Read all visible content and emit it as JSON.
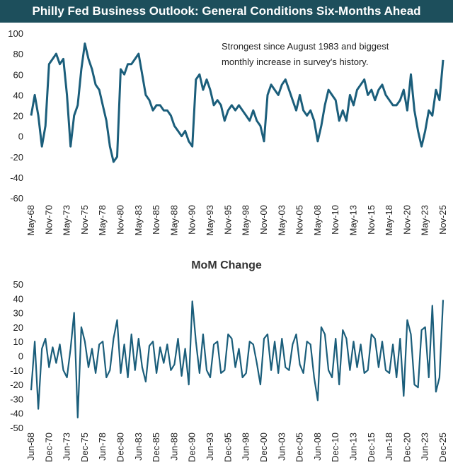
{
  "chart_data": [
    {
      "type": "line",
      "title": "Philly Fed Business Outlook: General Conditions Six-Months Ahead",
      "annotations": [
        "Strongest since August 1983 and biggest",
        "monthly increase in survey's history."
      ],
      "color": "#1b5e7b",
      "categories": [
        "May-68",
        null,
        null,
        null,
        null,
        "Nov-70",
        null,
        null,
        null,
        null,
        "May-73",
        null,
        null,
        null,
        null,
        "Nov-75",
        null,
        null,
        null,
        null,
        "May-78",
        null,
        null,
        null,
        null,
        "Nov-80",
        null,
        null,
        null,
        null,
        "May-83",
        null,
        null,
        null,
        null,
        "Nov-85",
        null,
        null,
        null,
        null,
        "May-88",
        null,
        null,
        null,
        null,
        "Nov-90",
        null,
        null,
        null,
        null,
        "May-93",
        null,
        null,
        null,
        null,
        "Nov-95",
        null,
        null,
        null,
        null,
        "May-98",
        null,
        null,
        null,
        null,
        "Nov-00",
        null,
        null,
        null,
        null,
        "May-03",
        null,
        null,
        null,
        null,
        "Nov-05",
        null,
        null,
        null,
        null,
        "May-08",
        null,
        null,
        null,
        null,
        "Nov-10",
        null,
        null,
        null,
        null,
        "May-13",
        null,
        null,
        null,
        null,
        "Nov-15",
        null,
        null,
        null,
        null,
        "May-18",
        null,
        null,
        null,
        null,
        "Nov-20",
        null,
        null,
        null,
        null,
        "May-23",
        null,
        null,
        null,
        null,
        "Nov-25"
      ],
      "values": [
        20,
        40,
        20,
        -10,
        10,
        70,
        75,
        80,
        70,
        75,
        40,
        -10,
        20,
        30,
        65,
        90,
        75,
        65,
        50,
        45,
        30,
        15,
        -10,
        -25,
        -20,
        65,
        60,
        70,
        70,
        75,
        80,
        60,
        40,
        35,
        25,
        30,
        30,
        25,
        25,
        20,
        10,
        5,
        0,
        5,
        -5,
        -10,
        55,
        60,
        45,
        55,
        45,
        30,
        35,
        30,
        15,
        25,
        30,
        25,
        30,
        25,
        20,
        15,
        25,
        15,
        10,
        -5,
        40,
        50,
        45,
        40,
        50,
        55,
        45,
        35,
        25,
        40,
        25,
        20,
        25,
        15,
        -5,
        10,
        30,
        45,
        40,
        35,
        15,
        25,
        15,
        40,
        30,
        45,
        50,
        55,
        40,
        45,
        35,
        45,
        50,
        40,
        35,
        30,
        30,
        35,
        45,
        25,
        60,
        25,
        5,
        -10,
        5,
        25,
        20,
        45,
        35,
        74
      ],
      "ylim": [
        -60,
        100
      ],
      "yticks": [
        -60,
        -40,
        -20,
        0,
        20,
        40,
        60,
        80,
        100
      ]
    },
    {
      "type": "line",
      "title": "MoM Change",
      "color": "#1b5e7b",
      "categories": [
        "Jun-68",
        null,
        null,
        null,
        null,
        "Dec-70",
        null,
        null,
        null,
        null,
        "Jun-73",
        null,
        null,
        null,
        null,
        "Dec-75",
        null,
        null,
        null,
        null,
        "Jun-78",
        null,
        null,
        null,
        null,
        "Dec-80",
        null,
        null,
        null,
        null,
        "Jun-83",
        null,
        null,
        null,
        null,
        "Dec-85",
        null,
        null,
        null,
        null,
        "Jun-88",
        null,
        null,
        null,
        null,
        "Dec-90",
        null,
        null,
        null,
        null,
        "Jun-93",
        null,
        null,
        null,
        null,
        "Dec-95",
        null,
        null,
        null,
        null,
        "Jun-98",
        null,
        null,
        null,
        null,
        "Dec-00",
        null,
        null,
        null,
        null,
        "Jun-03",
        null,
        null,
        null,
        null,
        "Dec-05",
        null,
        null,
        null,
        null,
        "Jun-08",
        null,
        null,
        null,
        null,
        "Dec-10",
        null,
        null,
        null,
        null,
        "Jun-13",
        null,
        null,
        null,
        null,
        "Dec-15",
        null,
        null,
        null,
        null,
        "Jun-18",
        null,
        null,
        null,
        null,
        "Dec-20",
        null,
        null,
        null,
        null,
        "Jun-23",
        null,
        null,
        null,
        null,
        "Dec-25"
      ],
      "values": [
        -24,
        10,
        -37,
        5,
        12,
        -8,
        6,
        -5,
        8,
        -10,
        -15,
        5,
        30,
        -43,
        20,
        10,
        -8,
        5,
        -12,
        8,
        10,
        -15,
        -10,
        12,
        25,
        -12,
        8,
        -15,
        15,
        -10,
        12,
        -8,
        -18,
        7,
        10,
        -12,
        6,
        -5,
        8,
        -10,
        -6,
        12,
        -14,
        5,
        -20,
        38,
        10,
        -12,
        15,
        -10,
        -15,
        8,
        10,
        -12,
        -10,
        15,
        12,
        -8,
        5,
        -15,
        -12,
        10,
        8,
        -5,
        -20,
        12,
        15,
        -10,
        10,
        -12,
        12,
        -8,
        -10,
        8,
        15,
        -6,
        -12,
        10,
        8,
        -15,
        -31,
        20,
        15,
        -10,
        -15,
        12,
        -20,
        18,
        12,
        -10,
        10,
        -8,
        8,
        -12,
        -10,
        15,
        12,
        -8,
        10,
        -10,
        -12,
        8,
        -15,
        12,
        -28,
        25,
        15,
        -20,
        -22,
        18,
        20,
        -15,
        35,
        -25,
        -15,
        39
      ],
      "ylim": [
        -50,
        50
      ],
      "yticks": [
        -50,
        -40,
        -30,
        -20,
        -10,
        0,
        10,
        20,
        30,
        40,
        50
      ]
    }
  ]
}
